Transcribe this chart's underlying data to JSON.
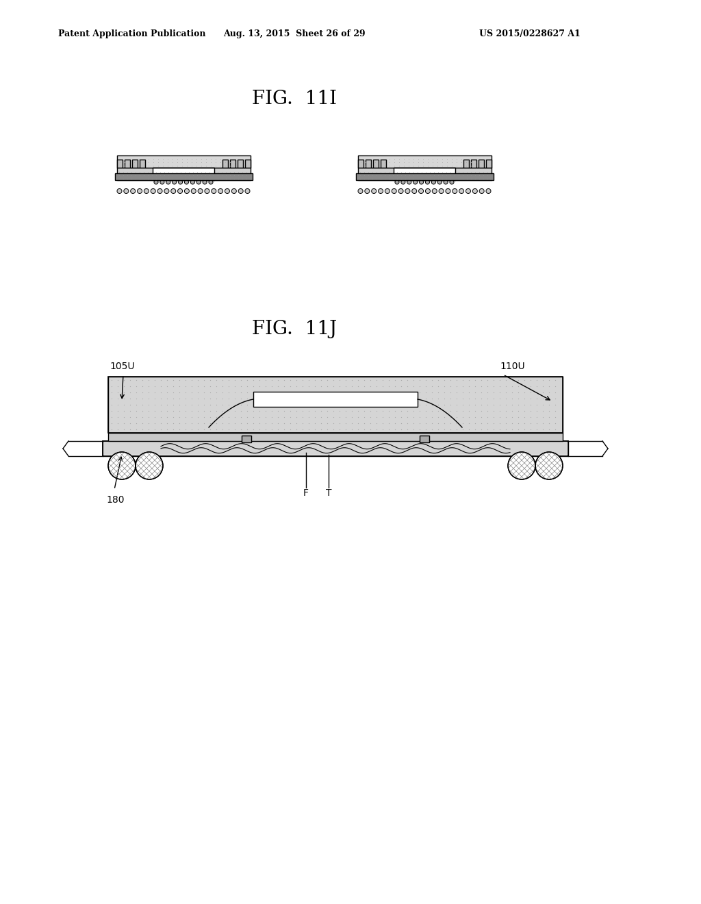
{
  "background_color": "#ffffff",
  "header_left": "Patent Application Publication",
  "header_center": "Aug. 13, 2015  Sheet 26 of 29",
  "header_right": "US 2015/0228627 A1",
  "fig_11i_title": "FIG.  11I",
  "fig_11j_title": "FIG.  11J",
  "label_105U": "105U",
  "label_110U": "110U",
  "label_180": "180",
  "label_F": "F",
  "label_T": "T",
  "line_color": "#000000",
  "light_gray": "#d0d0d0",
  "medium_gray": "#aaaaaa",
  "dot_color": "#aaaaaa"
}
